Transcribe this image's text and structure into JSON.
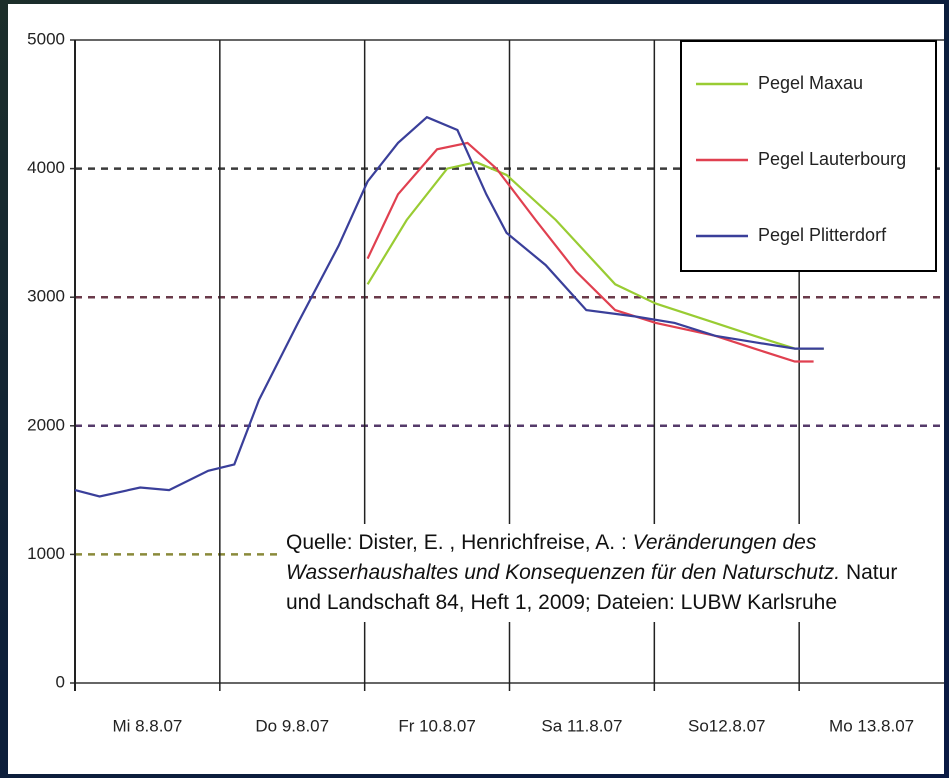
{
  "chart_data": {
    "type": "line",
    "categories": [
      "Mi 8.8.07",
      "Do 9.8.07",
      "Fr 10.8.07",
      "Sa 11.8.07",
      "So12.8.07",
      "Mo 13.8.07"
    ],
    "xlim": [
      0,
      6
    ],
    "ylim": [
      0,
      5000
    ],
    "yticks": [
      0,
      1000,
      2000,
      3000,
      4000,
      5000
    ],
    "grid": true,
    "series": [
      {
        "name": "Pegel Maxau",
        "color": "#99cc33",
        "x": [
          2.02,
          2.29,
          2.57,
          2.77,
          2.98,
          3.32,
          3.73,
          4.01,
          4.42,
          4.69,
          4.97,
          5.17
        ],
        "values": [
          3100,
          3600,
          4000,
          4050,
          3950,
          3600,
          3100,
          2950,
          2800,
          2700,
          2600,
          2600
        ]
      },
      {
        "name": "Pegel Lauterbourg",
        "color": "#e04050",
        "x": [
          2.02,
          2.23,
          2.5,
          2.71,
          2.91,
          3.18,
          3.46,
          3.73,
          4.01,
          4.42,
          4.69,
          4.97,
          5.1
        ],
        "values": [
          3300,
          3800,
          4150,
          4200,
          4000,
          3600,
          3200,
          2900,
          2800,
          2700,
          2600,
          2500,
          2500
        ]
      },
      {
        "name": "Pegel Plitterdorf",
        "color": "#3a3f9a",
        "x": [
          0,
          0.17,
          0.45,
          0.65,
          0.92,
          1.1,
          1.27,
          1.54,
          1.82,
          2.02,
          2.23,
          2.43,
          2.64,
          2.84,
          2.98,
          3.25,
          3.53,
          3.87,
          4.14,
          4.42,
          4.69,
          4.97,
          5.17
        ],
        "values": [
          1500,
          1450,
          1520,
          1500,
          1650,
          1700,
          2200,
          2800,
          3400,
          3900,
          4200,
          4400,
          4300,
          3800,
          3500,
          3250,
          2900,
          2850,
          2800,
          2700,
          2650,
          2600,
          2600
        ]
      }
    ],
    "annotation": {
      "before": "Quelle: Dister, E. , Henrichfreise, A. : ",
      "italic": "Veränderungen des Wasserhaushaltes und Konsequenzen für den Naturschutz.",
      "after": " Natur und Landschaft 84, Heft 1, 2009; Dateien: LUBW Karlsruhe"
    }
  }
}
